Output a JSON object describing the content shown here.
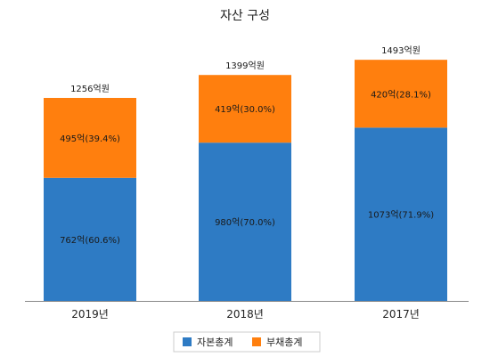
{
  "chart_data": {
    "type": "bar",
    "stacked": true,
    "title": "자산 구성",
    "categories": [
      "2019년",
      "2018년",
      "2017년"
    ],
    "series": [
      {
        "name": "자본총계",
        "color": "#2e7bc4",
        "values": [
          762,
          980,
          1073
        ],
        "labels": [
          "762억(60.6%)",
          "980억(70.0%)",
          "1073억(71.9%)"
        ]
      },
      {
        "name": "부채총계",
        "color": "#ff7f0e",
        "values": [
          495,
          419,
          420
        ],
        "labels": [
          "495억(39.4%)",
          "419억(30.0%)",
          "420억(28.1%)"
        ]
      }
    ],
    "totals": [
      1256,
      1399,
      1493
    ],
    "total_labels": [
      "1256억원",
      "1399억원",
      "1493억원"
    ],
    "ylim": [
      0,
      1600
    ],
    "grid": false,
    "legend_position": "bottom"
  }
}
